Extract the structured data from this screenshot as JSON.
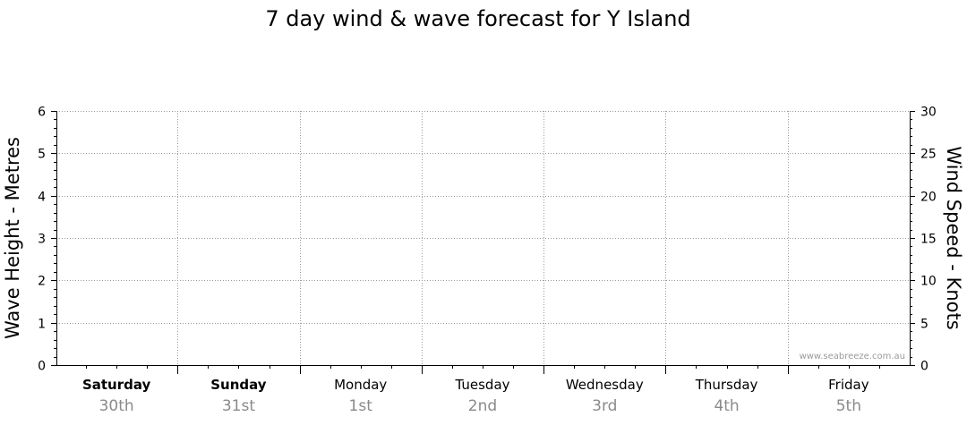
{
  "chart_data": {
    "type": "line",
    "title": "7 day wind & wave forecast for Y Island",
    "ylabel_left": "Wave Height - Metres",
    "ylabel_right": "Wind Speed - Knots",
    "ylim_left": [
      0,
      6
    ],
    "ylim_right": [
      0,
      30
    ],
    "yticks_left": [
      "0",
      "1",
      "2",
      "3",
      "4",
      "5",
      "6"
    ],
    "yticks_right": [
      "0",
      "5",
      "10",
      "15",
      "20",
      "25",
      "30"
    ],
    "grid": true,
    "days": [
      {
        "day": "Saturday",
        "date": "30th",
        "bold": true
      },
      {
        "day": "Sunday",
        "date": "31st",
        "bold": true
      },
      {
        "day": "Monday",
        "date": "1st",
        "bold": false
      },
      {
        "day": "Tuesday",
        "date": "2nd",
        "bold": false
      },
      {
        "day": "Wednesday",
        "date": "3rd",
        "bold": false
      },
      {
        "day": "Thursday",
        "date": "4th",
        "bold": false
      },
      {
        "day": "Friday",
        "date": "5th",
        "bold": false
      }
    ],
    "series": [],
    "watermark": "www.seabreeze.com.au"
  }
}
